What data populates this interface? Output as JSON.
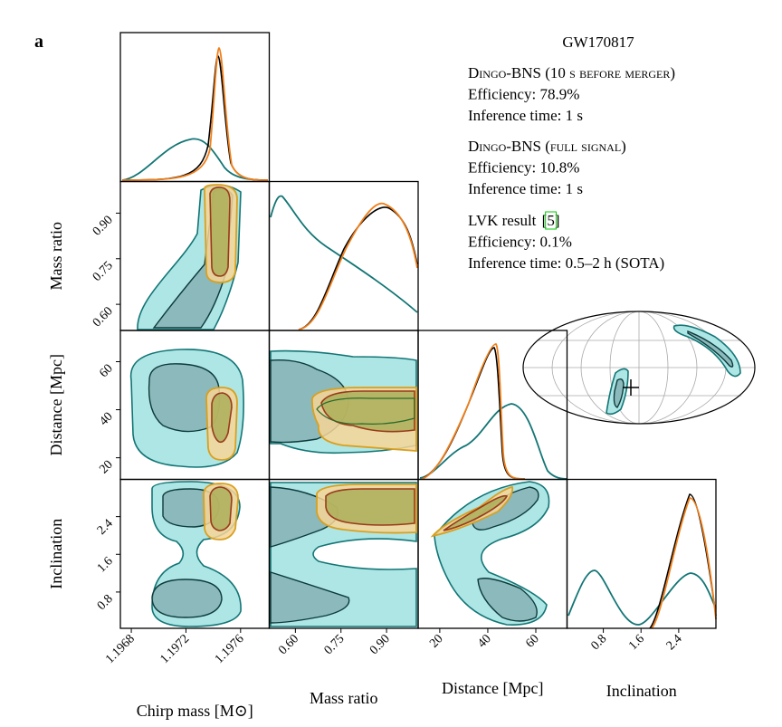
{
  "panel_label": "a",
  "title": "GW170817",
  "legend": [
    {
      "name": "Dingo-BNS (10 s before merger)",
      "color": "#137575",
      "lines": [
        "Efficiency: 78.9%",
        "Inference time: 1 s"
      ]
    },
    {
      "name": "Dingo-BNS (full signal)",
      "color": "#f07f1a",
      "lines": [
        "Efficiency: 10.8%",
        "Inference time: 1 s"
      ]
    },
    {
      "name": "LVK result",
      "ref": "[5]",
      "color": "#000000",
      "lines": [
        "Efficiency: 0.1%",
        "Inference time: 0.5–2 h (SOTA)"
      ]
    }
  ],
  "parameters": [
    {
      "label": "Chirp mass [M⊙]",
      "lim": [
        1.19672,
        1.19781
      ],
      "ticks": [
        1.1968,
        1.1972,
        1.1976
      ]
    },
    {
      "label": "Mass ratio",
      "lim": [
        0.514,
        1.004
      ],
      "ticks": [
        {
          "value": 0.6,
          "label": "0.60"
        },
        0.75,
        {
          "value": 0.9,
          "label": "0.90"
        }
      ]
    },
    {
      "label": "Distance [Mpc]",
      "lim": [
        11,
        73
      ],
      "ticks": [
        20,
        40,
        60
      ]
    },
    {
      "label": "Inclination",
      "lim": [
        0.03,
        3.19
      ],
      "ticks": [
        0.8,
        1.6,
        2.4
      ]
    }
  ]
}
